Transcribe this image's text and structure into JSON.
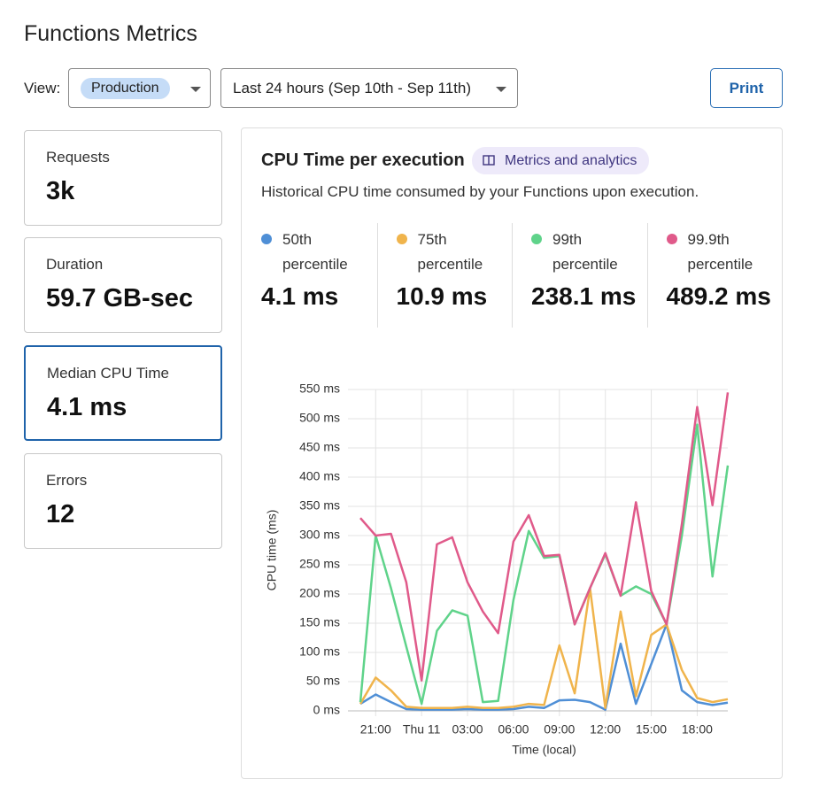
{
  "header": {
    "title": "Functions Metrics"
  },
  "toolbar": {
    "view_label": "View:",
    "view": "Production",
    "range": "Last 24 hours (Sep 10th - Sep 11th)",
    "print": "Print"
  },
  "cards": [
    {
      "label": "Requests",
      "value": "3k"
    },
    {
      "label": "Duration",
      "value": "59.7 GB-sec"
    },
    {
      "label": "Median CPU Time",
      "value": "4.1 ms"
    },
    {
      "label": "Errors",
      "value": "12"
    }
  ],
  "panel": {
    "title": "CPU Time per execution",
    "badge": "Metrics and analytics",
    "description": "Historical CPU time consumed by your Functions upon execution."
  },
  "chart_data": {
    "type": "line",
    "ylabel": "CPU time (ms)",
    "xlabel": "Time (local)",
    "x": [
      0,
      1,
      2,
      3,
      4,
      5,
      6,
      7,
      8,
      9,
      10,
      11,
      12,
      13,
      14,
      15,
      16,
      17,
      18,
      19,
      20,
      21,
      22,
      23,
      24
    ],
    "xlim": [
      0,
      24
    ],
    "xticks": [
      {
        "value": 1,
        "label": "21:00"
      },
      {
        "value": 4,
        "label": "Thu 11"
      },
      {
        "value": 7,
        "label": "03:00"
      },
      {
        "value": 10,
        "label": "06:00"
      },
      {
        "value": 13,
        "label": "09:00"
      },
      {
        "value": 16,
        "label": "12:00"
      },
      {
        "value": 19,
        "label": "15:00"
      },
      {
        "value": 22,
        "label": "18:00"
      }
    ],
    "ylim": [
      0,
      550
    ],
    "yticks": [
      {
        "value": 0,
        "label": "0 ms"
      },
      {
        "value": 50,
        "label": "50 ms"
      },
      {
        "value": 100,
        "label": "100 ms"
      },
      {
        "value": 150,
        "label": "150 ms"
      },
      {
        "value": 200,
        "label": "200 ms"
      },
      {
        "value": 250,
        "label": "250 ms"
      },
      {
        "value": 300,
        "label": "300 ms"
      },
      {
        "value": 350,
        "label": "350 ms"
      },
      {
        "value": 400,
        "label": "400 ms"
      },
      {
        "value": 450,
        "label": "450 ms"
      },
      {
        "value": 500,
        "label": "500 ms"
      },
      {
        "value": 550,
        "label": "550 ms"
      }
    ],
    "grid": true,
    "series": [
      {
        "name": "50th percentile",
        "summary": "4.1 ms",
        "color": "#4f8fd6",
        "values": [
          12,
          28,
          15,
          3,
          2,
          2,
          2,
          3,
          2,
          2,
          3,
          7,
          5,
          18,
          19,
          15,
          2,
          115,
          12,
          80,
          148,
          35,
          15,
          10,
          14
        ]
      },
      {
        "name": "75th percentile",
        "summary": "10.9 ms",
        "color": "#f0b44c",
        "values": [
          12,
          57,
          35,
          7,
          5,
          5,
          5,
          7,
          5,
          5,
          7,
          12,
          10,
          112,
          30,
          210,
          5,
          170,
          25,
          130,
          148,
          70,
          22,
          15,
          20
        ]
      },
      {
        "name": "99th percentile",
        "summary": "238.1 ms",
        "color": "#5fd38a",
        "values": [
          15,
          300,
          210,
          110,
          12,
          137,
          172,
          163,
          15,
          17,
          190,
          308,
          262,
          265,
          148,
          210,
          268,
          197,
          213,
          200,
          148,
          300,
          490,
          230,
          420
        ]
      },
      {
        "name": "99.9th percentile",
        "summary": "489.2 ms",
        "color": "#e05a8a",
        "values": [
          330,
          300,
          303,
          220,
          52,
          285,
          297,
          220,
          170,
          133,
          290,
          335,
          265,
          267,
          148,
          210,
          270,
          197,
          357,
          205,
          148,
          320,
          520,
          352,
          545
        ]
      }
    ]
  }
}
